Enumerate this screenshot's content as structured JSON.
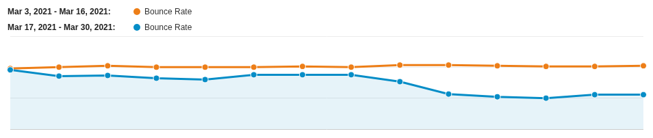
{
  "chart_data": {
    "type": "line",
    "categories": [
      null,
      null,
      null,
      null,
      null,
      null,
      null,
      null,
      null,
      null,
      null,
      null,
      null,
      null
    ],
    "series": [
      {
        "name": "Bounce Rate",
        "period": "Mar 3, 2021 - Mar 16, 2021:",
        "color": "#ed7e17",
        "type": "line",
        "marker": "circle",
        "line_style": "solid",
        "values": [
          48.9,
          50.0,
          51.1,
          50.0,
          50.0,
          50.0,
          50.6,
          50.0,
          51.7,
          51.7,
          51.1,
          50.6,
          50.6,
          51.1
        ]
      },
      {
        "name": "Bounce Rate",
        "period": "Mar 17, 2021 - Mar 30, 2021:",
        "color": "#058dc7",
        "type": "area",
        "marker": "circle",
        "line_style": "solid",
        "values": [
          47.8,
          42.8,
          43.3,
          41.1,
          40.0,
          43.9,
          43.9,
          43.9,
          38.3,
          28.3,
          26.1,
          25.0,
          27.8,
          27.8
        ]
      }
    ],
    "ylim": [
      0,
      75
    ],
    "yticks": [
      0,
      25,
      50,
      75
    ],
    "grid": true,
    "tick_labels": false,
    "legend": "top-left"
  }
}
